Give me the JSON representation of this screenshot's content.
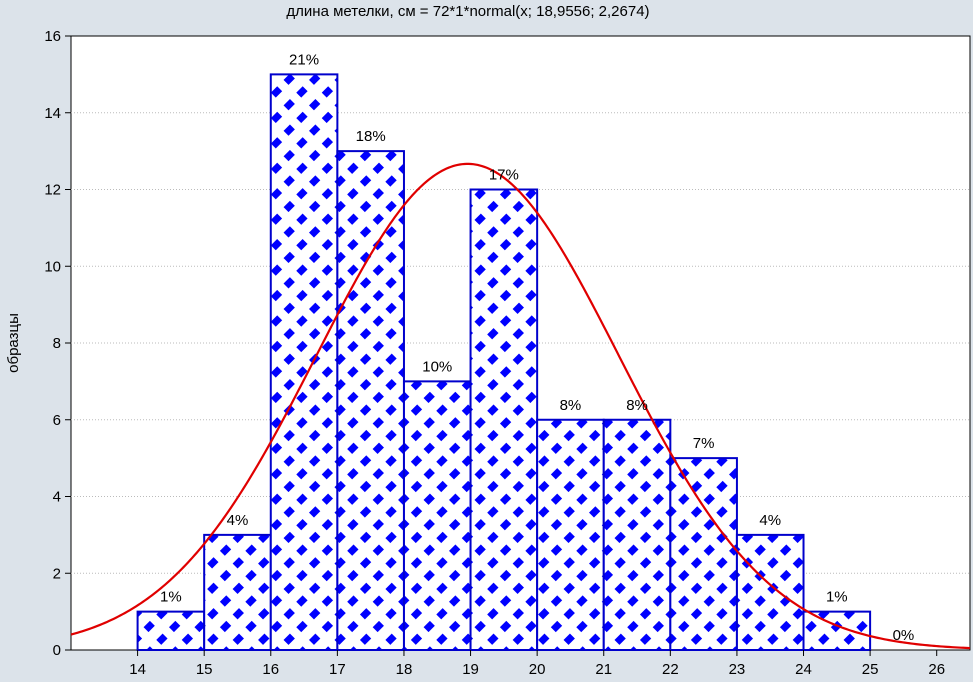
{
  "chart_data": {
    "type": "bar",
    "title": "длина метелки, см = 72*1*normal(x; 18,9556; 2,2674)",
    "xlabel": "",
    "ylabel": "образцы",
    "xlim": [
      13,
      26.5
    ],
    "ylim": [
      0,
      16
    ],
    "x_ticks": [
      14,
      15,
      16,
      17,
      18,
      19,
      20,
      21,
      22,
      23,
      24,
      25,
      26
    ],
    "y_ticks": [
      0,
      2,
      4,
      6,
      8,
      10,
      12,
      14,
      16
    ],
    "bins": [
      {
        "from": 14,
        "to": 15,
        "value": 1,
        "label": "1%"
      },
      {
        "from": 15,
        "to": 16,
        "value": 3,
        "label": "4%"
      },
      {
        "from": 16,
        "to": 17,
        "value": 15,
        "label": "21%"
      },
      {
        "from": 17,
        "to": 18,
        "value": 13,
        "label": "18%"
      },
      {
        "from": 18,
        "to": 19,
        "value": 7,
        "label": "10%"
      },
      {
        "from": 19,
        "to": 20,
        "value": 12,
        "label": "17%"
      },
      {
        "from": 20,
        "to": 21,
        "value": 6,
        "label": "8%"
      },
      {
        "from": 21,
        "to": 22,
        "value": 6,
        "label": "8%"
      },
      {
        "from": 22,
        "to": 23,
        "value": 5,
        "label": "7%"
      },
      {
        "from": 23,
        "to": 24,
        "value": 3,
        "label": "4%"
      },
      {
        "from": 24,
        "to": 25,
        "value": 1,
        "label": "1%"
      },
      {
        "from": 25,
        "to": 26,
        "value": 0,
        "label": "0%"
      }
    ],
    "fit": {
      "type": "normal",
      "n": 72,
      "bin_width": 1,
      "mean": 18.9556,
      "sd": 2.2674
    },
    "grid": true,
    "colors": {
      "bar_edge": "#0000cc",
      "bar_pattern": "#0000ff",
      "fit_line": "#e00000",
      "background": "#dce3ea",
      "plot_area": "#ffffff"
    }
  }
}
